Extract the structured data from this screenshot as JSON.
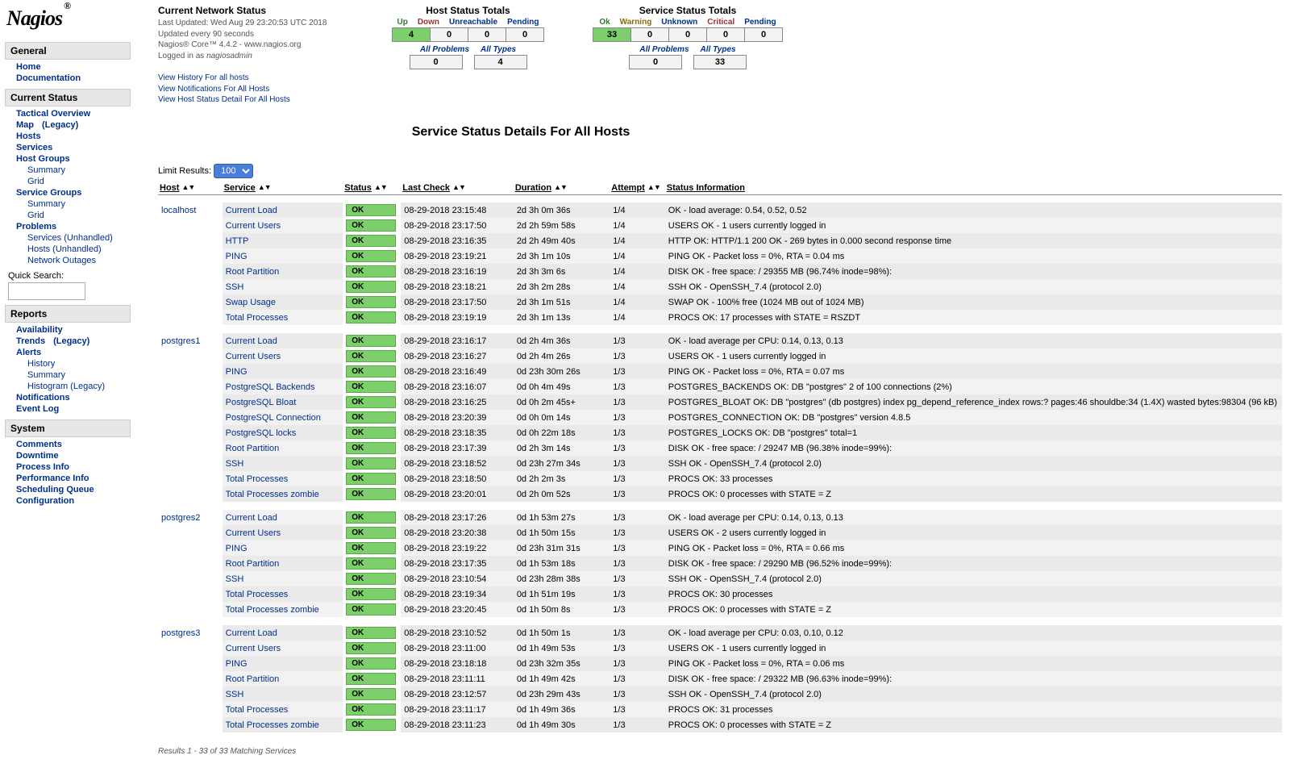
{
  "logo_text": "Nagios",
  "sidebar": {
    "sections": [
      {
        "title": "General",
        "items": [
          {
            "label": "Home",
            "bold": true
          },
          {
            "label": "Documentation",
            "bold": true
          }
        ]
      },
      {
        "title": "Current Status",
        "items": [
          {
            "label": "Tactical Overview",
            "bold": true
          },
          {
            "label": "Map",
            "bold": true,
            "suffix": "(Legacy)"
          },
          {
            "label": "Hosts",
            "bold": true
          },
          {
            "label": "Services",
            "bold": true
          },
          {
            "label": "Host Groups",
            "bold": true
          },
          {
            "label": "Summary",
            "sub": true
          },
          {
            "label": "Grid",
            "sub": true
          },
          {
            "label": "Service Groups",
            "bold": true
          },
          {
            "label": "Summary",
            "sub": true
          },
          {
            "label": "Grid",
            "sub": true
          },
          {
            "label": "Problems",
            "bold": true
          },
          {
            "label": "Services (Unhandled)",
            "sub": true
          },
          {
            "label": "Hosts (Unhandled)",
            "sub": true
          },
          {
            "label": "Network Outages",
            "sub": true
          }
        ],
        "quick_search_label": "Quick Search:"
      },
      {
        "title": "Reports",
        "items": [
          {
            "label": "Availability",
            "bold": true
          },
          {
            "label": "Trends",
            "bold": true,
            "suffix": "(Legacy)"
          },
          {
            "label": "Alerts",
            "bold": true
          },
          {
            "label": "History",
            "sub": true
          },
          {
            "label": "Summary",
            "sub": true
          },
          {
            "label": "Histogram (Legacy)",
            "sub": true
          },
          {
            "label": "Notifications",
            "bold": true
          },
          {
            "label": "Event Log",
            "bold": true
          }
        ]
      },
      {
        "title": "System",
        "items": [
          {
            "label": "Comments",
            "bold": true
          },
          {
            "label": "Downtime",
            "bold": true
          },
          {
            "label": "Process Info",
            "bold": true
          },
          {
            "label": "Performance Info",
            "bold": true
          },
          {
            "label": "Scheduling Queue",
            "bold": true
          },
          {
            "label": "Configuration",
            "bold": true
          }
        ]
      }
    ]
  },
  "status_header": {
    "title": "Current Network Status",
    "last_updated": "Last Updated: Wed Aug 29 23:20:53 UTC 2018",
    "update_interval": "Updated every 90 seconds",
    "core_version": "Nagios® Core™ 4.4.2 - www.nagios.org",
    "logged_in": "Logged in as nagiosadmin",
    "links": [
      "View History For all hosts",
      "View Notifications For All Hosts",
      "View Host Status Detail For All Hosts"
    ]
  },
  "host_totals": {
    "title": "Host Status Totals",
    "headers": [
      "Up",
      "Down",
      "Unreachable",
      "Pending"
    ],
    "values": [
      "4",
      "0",
      "0",
      "0"
    ],
    "green_index": 0,
    "sub_headers": [
      "All Problems",
      "All Types"
    ],
    "sub_values": [
      "0",
      "4"
    ]
  },
  "service_totals": {
    "title": "Service Status Totals",
    "headers": [
      "Ok",
      "Warning",
      "Unknown",
      "Critical",
      "Pending"
    ],
    "values": [
      "33",
      "0",
      "0",
      "0",
      "0"
    ],
    "green_index": 0,
    "sub_headers": [
      "All Problems",
      "All Types"
    ],
    "sub_values": [
      "0",
      "33"
    ]
  },
  "page_title": "Service Status Details For All Hosts",
  "limit_results": {
    "label": "Limit Results:",
    "value": "100"
  },
  "table": {
    "columns": [
      "Host",
      "Service",
      "Status",
      "Last Check",
      "Duration",
      "Attempt",
      "Status Information"
    ],
    "hosts": [
      {
        "name": "localhost",
        "services": [
          {
            "svc": "Current Load",
            "status": "OK",
            "last": "08-29-2018 23:15:48",
            "dur": "2d 3h 0m 36s",
            "att": "1/4",
            "info": "OK - load average: 0.54, 0.52, 0.52"
          },
          {
            "svc": "Current Users",
            "status": "OK",
            "last": "08-29-2018 23:17:50",
            "dur": "2d 2h 59m 58s",
            "att": "1/4",
            "info": "USERS OK - 1 users currently logged in"
          },
          {
            "svc": "HTTP",
            "status": "OK",
            "last": "08-29-2018 23:16:35",
            "dur": "2d 2h 49m 40s",
            "att": "1/4",
            "info": "HTTP OK: HTTP/1.1 200 OK - 269 bytes in 0.000 second response time"
          },
          {
            "svc": "PING",
            "status": "OK",
            "last": "08-29-2018 23:19:21",
            "dur": "2d 3h 1m 10s",
            "att": "1/4",
            "info": "PING OK - Packet loss = 0%, RTA = 0.04 ms"
          },
          {
            "svc": "Root Partition",
            "status": "OK",
            "last": "08-29-2018 23:16:19",
            "dur": "2d 3h 3m 6s",
            "att": "1/4",
            "info": "DISK OK - free space: / 29355 MB (96.74% inode=98%):"
          },
          {
            "svc": "SSH",
            "status": "OK",
            "last": "08-29-2018 23:18:21",
            "dur": "2d 3h 2m 28s",
            "att": "1/4",
            "info": "SSH OK - OpenSSH_7.4 (protocol 2.0)"
          },
          {
            "svc": "Swap Usage",
            "status": "OK",
            "last": "08-29-2018 23:17:50",
            "dur": "2d 3h 1m 51s",
            "att": "1/4",
            "info": "SWAP OK - 100% free (1024 MB out of 1024 MB)"
          },
          {
            "svc": "Total Processes",
            "status": "OK",
            "last": "08-29-2018 23:19:19",
            "dur": "2d 3h 1m 13s",
            "att": "1/4",
            "info": "PROCS OK: 17 processes with STATE = RSZDT"
          }
        ]
      },
      {
        "name": "postgres1",
        "services": [
          {
            "svc": "Current Load",
            "status": "OK",
            "last": "08-29-2018 23:16:17",
            "dur": "0d 2h 4m 36s",
            "att": "1/3",
            "info": "OK - load average per CPU: 0.14, 0.13, 0.13"
          },
          {
            "svc": "Current Users",
            "status": "OK",
            "last": "08-29-2018 23:16:27",
            "dur": "0d 2h 4m 26s",
            "att": "1/3",
            "info": "USERS OK - 1 users currently logged in"
          },
          {
            "svc": "PING",
            "status": "OK",
            "last": "08-29-2018 23:16:49",
            "dur": "0d 23h 30m 26s",
            "att": "1/3",
            "info": "PING OK - Packet loss = 0%, RTA = 0.07 ms"
          },
          {
            "svc": "PostgreSQL Backends",
            "status": "OK",
            "last": "08-29-2018 23:16:07",
            "dur": "0d 0h 4m 49s",
            "att": "1/3",
            "info": "POSTGRES_BACKENDS OK: DB \"postgres\" 2 of 100 connections (2%)"
          },
          {
            "svc": "PostgreSQL Bloat",
            "status": "OK",
            "last": "08-29-2018 23:16:25",
            "dur": "0d 0h 2m 45s+",
            "att": "1/3",
            "info": "POSTGRES_BLOAT OK: DB \"postgres\" (db postgres) index pg_depend_reference_index rows:? pages:46 shouldbe:34 (1.4X) wasted bytes:98304 (96 kB)"
          },
          {
            "svc": "PostgreSQL Connection",
            "status": "OK",
            "last": "08-29-2018 23:20:39",
            "dur": "0d 0h 0m 14s",
            "att": "1/3",
            "info": "POSTGRES_CONNECTION OK: DB \"postgres\" version 4.8.5"
          },
          {
            "svc": "PostgreSQL locks",
            "status": "OK",
            "last": "08-29-2018 23:18:35",
            "dur": "0d 0h 22m 18s",
            "att": "1/3",
            "info": "POSTGRES_LOCKS OK: DB \"postgres\" total=1"
          },
          {
            "svc": "Root Partition",
            "status": "OK",
            "last": "08-29-2018 23:17:39",
            "dur": "0d 2h 3m 14s",
            "att": "1/3",
            "info": "DISK OK - free space: / 29247 MB (96.38% inode=99%):"
          },
          {
            "svc": "SSH",
            "status": "OK",
            "last": "08-29-2018 23:18:52",
            "dur": "0d 23h 27m 34s",
            "att": "1/3",
            "info": "SSH OK - OpenSSH_7.4 (protocol 2.0)"
          },
          {
            "svc": "Total Processes",
            "status": "OK",
            "last": "08-29-2018 23:18:50",
            "dur": "0d 2h 2m 3s",
            "att": "1/3",
            "info": "PROCS OK: 33 processes"
          },
          {
            "svc": "Total Processes zombie",
            "status": "OK",
            "last": "08-29-2018 23:20:01",
            "dur": "0d 2h 0m 52s",
            "att": "1/3",
            "info": "PROCS OK: 0 processes with STATE = Z"
          }
        ]
      },
      {
        "name": "postgres2",
        "services": [
          {
            "svc": "Current Load",
            "status": "OK",
            "last": "08-29-2018 23:17:26",
            "dur": "0d 1h 53m 27s",
            "att": "1/3",
            "info": "OK - load average per CPU: 0.14, 0.13, 0.13"
          },
          {
            "svc": "Current Users",
            "status": "OK",
            "last": "08-29-2018 23:20:38",
            "dur": "0d 1h 50m 15s",
            "att": "1/3",
            "info": "USERS OK - 2 users currently logged in"
          },
          {
            "svc": "PING",
            "status": "OK",
            "last": "08-29-2018 23:19:22",
            "dur": "0d 23h 31m 31s",
            "att": "1/3",
            "info": "PING OK - Packet loss = 0%, RTA = 0.66 ms"
          },
          {
            "svc": "Root Partition",
            "status": "OK",
            "last": "08-29-2018 23:17:35",
            "dur": "0d 1h 53m 18s",
            "att": "1/3",
            "info": "DISK OK - free space: / 29290 MB (96.52% inode=99%):"
          },
          {
            "svc": "SSH",
            "status": "OK",
            "last": "08-29-2018 23:10:54",
            "dur": "0d 23h 28m 38s",
            "att": "1/3",
            "info": "SSH OK - OpenSSH_7.4 (protocol 2.0)"
          },
          {
            "svc": "Total Processes",
            "status": "OK",
            "last": "08-29-2018 23:19:34",
            "dur": "0d 1h 51m 19s",
            "att": "1/3",
            "info": "PROCS OK: 30 processes"
          },
          {
            "svc": "Total Processes zombie",
            "status": "OK",
            "last": "08-29-2018 23:20:45",
            "dur": "0d 1h 50m 8s",
            "att": "1/3",
            "info": "PROCS OK: 0 processes with STATE = Z"
          }
        ]
      },
      {
        "name": "postgres3",
        "services": [
          {
            "svc": "Current Load",
            "status": "OK",
            "last": "08-29-2018 23:10:52",
            "dur": "0d 1h 50m 1s",
            "att": "1/3",
            "info": "OK - load average per CPU: 0.03, 0.10, 0.12"
          },
          {
            "svc": "Current Users",
            "status": "OK",
            "last": "08-29-2018 23:11:00",
            "dur": "0d 1h 49m 53s",
            "att": "1/3",
            "info": "USERS OK - 1 users currently logged in"
          },
          {
            "svc": "PING",
            "status": "OK",
            "last": "08-29-2018 23:18:18",
            "dur": "0d 23h 32m 35s",
            "att": "1/3",
            "info": "PING OK - Packet loss = 0%, RTA = 0.06 ms"
          },
          {
            "svc": "Root Partition",
            "status": "OK",
            "last": "08-29-2018 23:11:11",
            "dur": "0d 1h 49m 42s",
            "att": "1/3",
            "info": "DISK OK - free space: / 29322 MB (96.63% inode=99%):"
          },
          {
            "svc": "SSH",
            "status": "OK",
            "last": "08-29-2018 23:12:57",
            "dur": "0d 23h 29m 43s",
            "att": "1/3",
            "info": "SSH OK - OpenSSH_7.4 (protocol 2.0)"
          },
          {
            "svc": "Total Processes",
            "status": "OK",
            "last": "08-29-2018 23:11:17",
            "dur": "0d 1h 49m 36s",
            "att": "1/3",
            "info": "PROCS OK: 31 processes"
          },
          {
            "svc": "Total Processes zombie",
            "status": "OK",
            "last": "08-29-2018 23:11:23",
            "dur": "0d 1h 49m 30s",
            "att": "1/3",
            "info": "PROCS OK: 0 processes with STATE = Z"
          }
        ]
      }
    ]
  },
  "results_footer": "Results 1 - 33 of 33 Matching Services",
  "colors": {
    "ok_bg": "#7DCF6B",
    "link": "#002F8A",
    "row_odd": "#eaeaea",
    "row_even": "#f2f2f2"
  }
}
